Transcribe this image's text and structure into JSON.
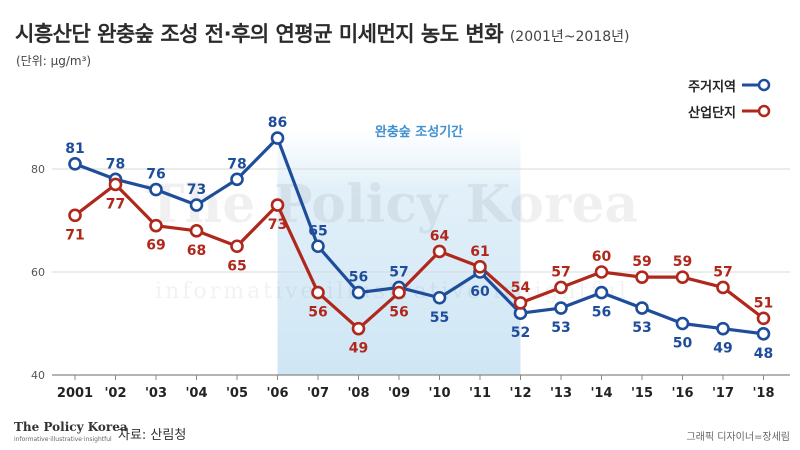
{
  "header": {
    "title": "시흥산단 완충숲 조성 전·후의 연평균 미세먼지 농도 변화",
    "title_range": "(2001년~2018년)",
    "unit": "(단위: μg/m³)"
  },
  "watermark": {
    "line1": "The Policy Korea",
    "line2": "informative illustrative insightful"
  },
  "footer": {
    "logo": "The Policy Korea",
    "logo_tagline": "informative·illustrative·insightful",
    "source": "자료: 산림청",
    "credit": "그래픽 디자이너=장세림"
  },
  "colors": {
    "residential": "#1e4d9b",
    "industrial": "#b0271b",
    "period_band": "#cfe6f5",
    "period_label": "#3f90d0",
    "grid": "#d9d9d9"
  },
  "chart_data": {
    "type": "line",
    "categories": [
      "2001",
      "'02",
      "'03",
      "'04",
      "'05",
      "'06",
      "'07",
      "'08",
      "'09",
      "'10",
      "'11",
      "'12",
      "'13",
      "'14",
      "'15",
      "'16",
      "'17",
      "'18"
    ],
    "series": [
      {
        "name": "주거지역",
        "values": [
          81,
          78,
          76,
          73,
          78,
          86,
          65,
          56,
          57,
          55,
          60,
          52,
          53,
          56,
          53,
          50,
          49,
          48
        ]
      },
      {
        "name": "산업단지",
        "values": [
          71,
          77,
          69,
          68,
          65,
          73,
          56,
          49,
          56,
          64,
          61,
          54,
          57,
          60,
          59,
          59,
          57,
          51
        ]
      }
    ],
    "ylim": [
      40,
      90
    ],
    "yticks": [
      40,
      60,
      80
    ],
    "highlight_period": {
      "label": "완충숲 조성기간",
      "from": "'06",
      "to": "'12"
    },
    "grid": true,
    "legend": "top-right"
  }
}
